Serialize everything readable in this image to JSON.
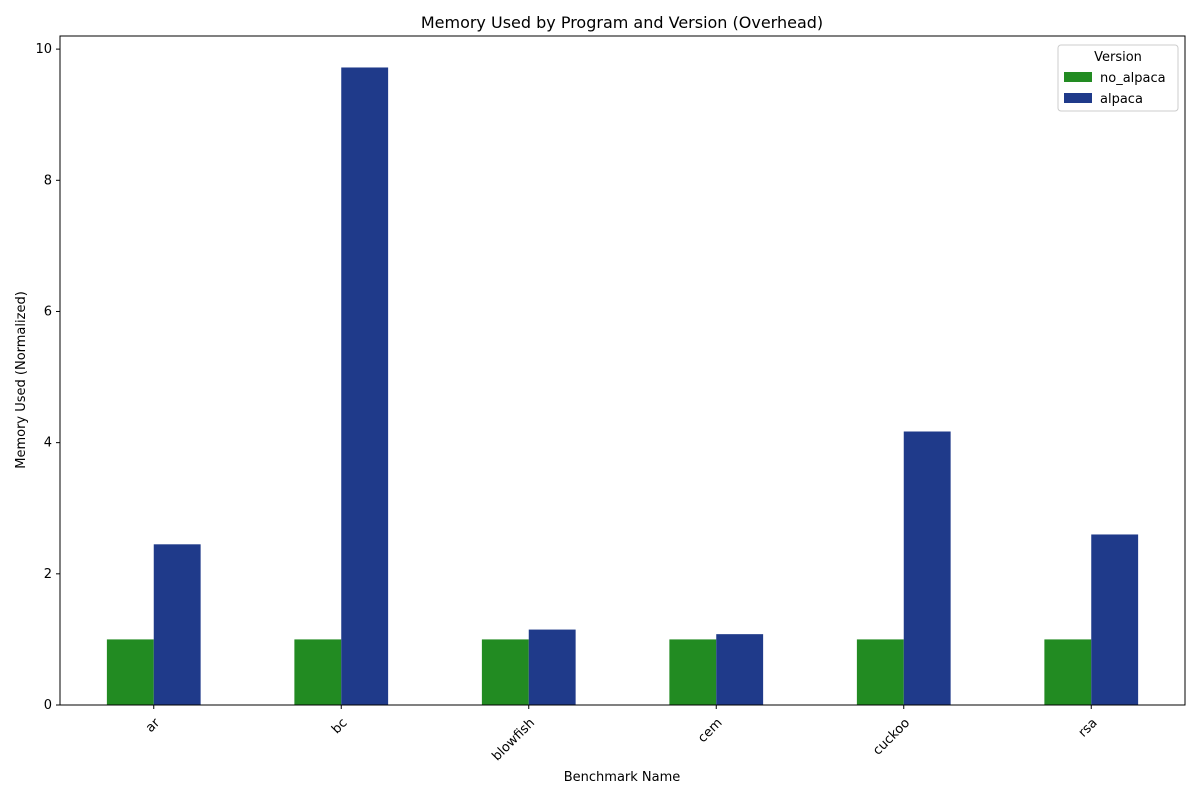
{
  "chart_data": {
    "type": "bar",
    "title": "Memory Used by Program and Version (Overhead)",
    "xlabel": "Benchmark Name",
    "ylabel": "Memory Used (Normalized)",
    "categories": [
      "ar",
      "bc",
      "blowfish",
      "cem",
      "cuckoo",
      "rsa"
    ],
    "series": [
      {
        "name": "no_alpaca",
        "color": "#228b22",
        "values": [
          1.0,
          1.0,
          1.0,
          1.0,
          1.0,
          1.0
        ]
      },
      {
        "name": "alpaca",
        "color": "#1f3a8a",
        "values": [
          2.45,
          9.72,
          1.15,
          1.08,
          4.17,
          2.6
        ]
      }
    ],
    "ylim": [
      0,
      10.2
    ],
    "yticks": [
      0,
      2,
      4,
      6,
      8,
      10
    ],
    "legend": {
      "title": "Version",
      "position": "top-right"
    },
    "grid": false
  }
}
